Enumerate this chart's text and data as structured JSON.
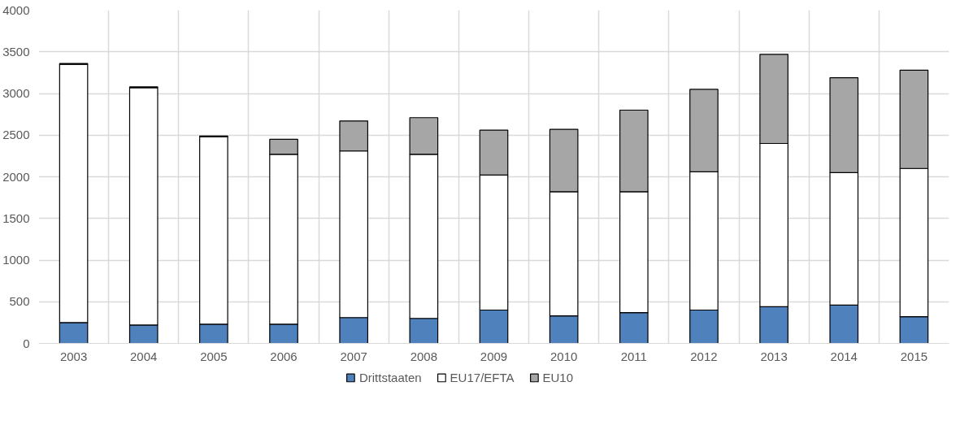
{
  "chart_data": {
    "type": "bar",
    "stacked": true,
    "categories": [
      "2003",
      "2004",
      "2005",
      "2006",
      "2007",
      "2008",
      "2009",
      "2010",
      "2011",
      "2012",
      "2013",
      "2014",
      "2015"
    ],
    "series": [
      {
        "name": "Drittstaaten",
        "color": "#4f81bd",
        "values": [
          250,
          220,
          230,
          230,
          310,
          300,
          400,
          330,
          370,
          400,
          440,
          460,
          320
        ]
      },
      {
        "name": "EU17/EFTA",
        "color": "#ffffff",
        "values": [
          3100,
          2850,
          2250,
          2040,
          2000,
          1970,
          1620,
          1490,
          1450,
          1660,
          1960,
          1590,
          1780
        ]
      },
      {
        "name": "EU10",
        "color": "#a6a6a6",
        "values": [
          10,
          10,
          10,
          180,
          360,
          440,
          540,
          750,
          980,
          990,
          1070,
          1140,
          1180
        ]
      }
    ],
    "ylim": [
      0,
      4000
    ],
    "yticks": [
      0,
      500,
      1000,
      1500,
      2000,
      2500,
      3000,
      3500,
      4000
    ],
    "grid": true,
    "legend": "bottom"
  }
}
